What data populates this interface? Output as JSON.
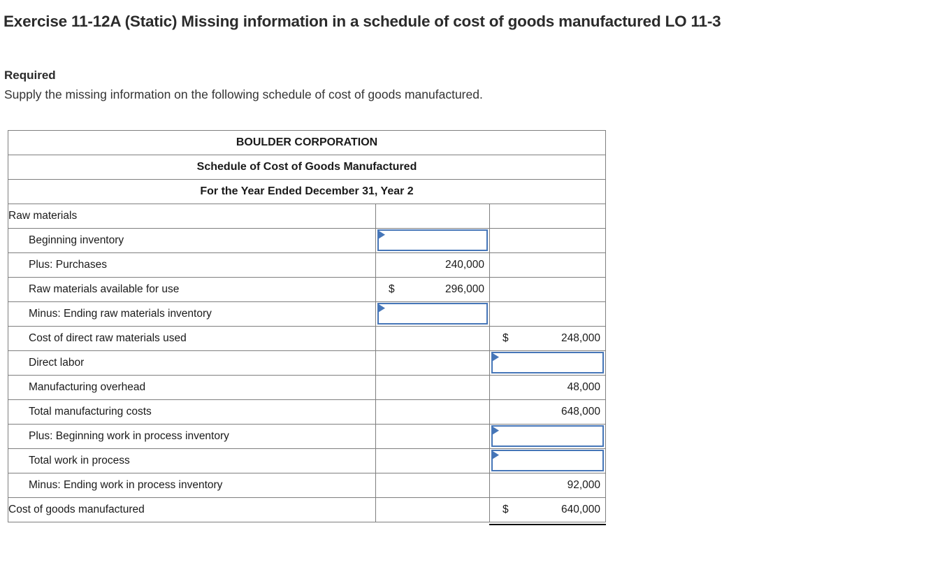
{
  "page": {
    "title": "Exercise 11-12A (Static) Missing information in a schedule of cost of goods manufactured LO 11-3",
    "required_label": "Required",
    "instruction": "Supply the missing information on the following schedule of cost of goods manufactured."
  },
  "colors": {
    "header_blue": "#7AAAE0",
    "grid_gray": "#7F7F7F",
    "input_border_blue": "#4676B8",
    "sum_line_black": "#000000"
  },
  "table": {
    "header_lines": [
      "BOULDER CORPORATION",
      "Schedule of Cost of Goods Manufactured",
      "For the Year Ended December 31, Year 2"
    ],
    "rows": [
      {
        "label": "Raw materials",
        "indent": false,
        "col2": {
          "type": "empty"
        },
        "col3": {
          "type": "empty"
        }
      },
      {
        "label": "Beginning inventory",
        "indent": true,
        "col2": {
          "type": "input"
        },
        "col3": {
          "type": "empty"
        }
      },
      {
        "label": "Plus: Purchases",
        "indent": true,
        "col2": {
          "type": "value",
          "prefix": "",
          "value": "240,000",
          "sum_line": true
        },
        "col3": {
          "type": "empty"
        }
      },
      {
        "label": "Raw materials available for use",
        "indent": true,
        "col2": {
          "type": "value",
          "prefix": "$",
          "value": "296,000"
        },
        "col3": {
          "type": "empty"
        }
      },
      {
        "label": "Minus: Ending raw materials inventory",
        "indent": true,
        "col2": {
          "type": "input",
          "sum_line": true
        },
        "col3": {
          "type": "empty"
        }
      },
      {
        "label": "Cost of direct raw materials used",
        "indent": true,
        "col2": {
          "type": "empty"
        },
        "col3": {
          "type": "value",
          "prefix": "$",
          "value": "248,000"
        }
      },
      {
        "label": "Direct labor",
        "indent": true,
        "col2": {
          "type": "empty"
        },
        "col3": {
          "type": "input"
        }
      },
      {
        "label": "Manufacturing overhead",
        "indent": true,
        "col2": {
          "type": "empty"
        },
        "col3": {
          "type": "value",
          "prefix": "",
          "value": "48,000",
          "sum_line": true
        }
      },
      {
        "label": "Total manufacturing costs",
        "indent": true,
        "col2": {
          "type": "empty"
        },
        "col3": {
          "type": "value",
          "prefix": "",
          "value": "648,000"
        }
      },
      {
        "label": "Plus: Beginning work in process inventory",
        "indent": true,
        "col2": {
          "type": "empty"
        },
        "col3": {
          "type": "input"
        }
      },
      {
        "label": "Total work in process",
        "indent": true,
        "col2": {
          "type": "empty"
        },
        "col3": {
          "type": "input"
        }
      },
      {
        "label": "Minus: Ending work in process inventory",
        "indent": true,
        "col2": {
          "type": "empty"
        },
        "col3": {
          "type": "value",
          "prefix": "",
          "value": "92,000",
          "sum_line": true
        }
      },
      {
        "label": "Cost of goods manufactured",
        "indent": false,
        "col2": {
          "type": "empty"
        },
        "col3": {
          "type": "value",
          "prefix": "$",
          "value": "640,000",
          "double_underline": true
        }
      }
    ]
  }
}
